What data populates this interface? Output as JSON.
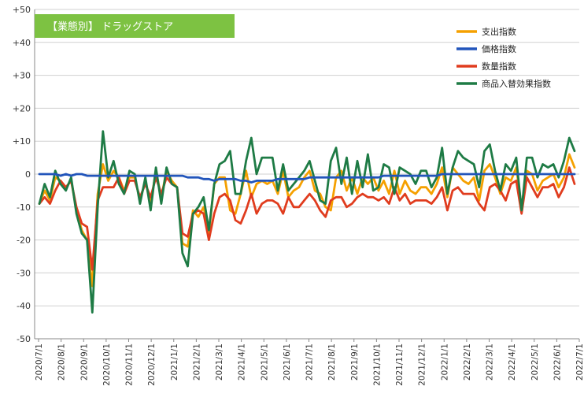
{
  "chart_data": {
    "type": "line",
    "title": "【業態別】 ドラッグストア",
    "xlabel": "",
    "ylabel": "",
    "ylim": [
      -50,
      50
    ],
    "y_ticks": [
      "+50",
      "+40",
      "+30",
      "+20",
      "+10",
      "0",
      "-10",
      "-20",
      "-30",
      "-40",
      "-50"
    ],
    "y_tick_values": [
      50,
      40,
      30,
      20,
      10,
      0,
      -10,
      -20,
      -30,
      -40,
      -50
    ],
    "x_tick_labels": [
      "2020/7/1",
      "2020/8/1",
      "2020/9/1",
      "2020/10/1",
      "2020/11/1",
      "2020/12/1",
      "2021/1/1",
      "2021/2/1",
      "2021/3/1",
      "2021/4/1",
      "2021/5/1",
      "2021/6/1",
      "2021/7/1",
      "2021/8/1",
      "2021/9/1",
      "2021/10/1",
      "2021/11/1",
      "2021/12/1",
      "2022/1/1",
      "2022/2/1",
      "2022/3/1",
      "2022/4/1",
      "2022/5/1",
      "2022/6/1",
      "2022/7/1"
    ],
    "x_start": "2020/7/1",
    "x_end": "2022/7/1",
    "grid": "horizontal",
    "legend_position": "top-right",
    "series": [
      {
        "name": "支出指数",
        "color": "#f5a000",
        "values": [
          -9,
          -5,
          -8,
          -1,
          -2,
          -4,
          -2,
          -11,
          -17,
          -20,
          -34,
          -6,
          3,
          -2,
          1,
          -1,
          -5,
          -1,
          -1,
          -8,
          -2,
          -9,
          1,
          -7,
          1,
          -2,
          -4,
          -21,
          -22,
          -11,
          -13,
          -10,
          -18,
          -3,
          -1,
          -1,
          -11,
          -12,
          -6,
          1,
          -7,
          -3,
          -2,
          -3,
          -2,
          -6,
          1,
          -7,
          -5,
          -4,
          -1,
          1,
          -5,
          -6,
          -10,
          -11,
          -1,
          1,
          -5,
          -1,
          -6,
          -1,
          -3,
          -1,
          -5,
          -2,
          -6,
          1,
          -6,
          -2,
          -5,
          -6,
          -4,
          -4,
          -6,
          -3,
          2,
          -7,
          2,
          0,
          -2,
          -3,
          -1,
          -8,
          1,
          3,
          -1,
          -6,
          -1,
          -2,
          2,
          -10,
          1,
          0,
          -5,
          -2,
          -1,
          0,
          -4,
          -1,
          6,
          2
        ]
      },
      {
        "name": "価格指数",
        "color": "#2255bb",
        "values": [
          0,
          0,
          0,
          0,
          -0.5,
          0,
          -0.5,
          0,
          0,
          -0.5,
          -0.5,
          -0.5,
          -0.5,
          -0.5,
          -0.5,
          -0.5,
          -0.5,
          -0.5,
          -0.5,
          -0.5,
          -0.5,
          -0.5,
          -0.5,
          -0.5,
          -0.5,
          -0.5,
          -0.5,
          -0.5,
          -1,
          -1,
          -1,
          -1.5,
          -1.5,
          -2,
          -1.5,
          -1.5,
          -1.5,
          -1.5,
          -2,
          -2,
          -2.5,
          -2,
          -2,
          -2,
          -2,
          -1.5,
          -1.5,
          -1.5,
          -1.5,
          -1.5,
          -1.5,
          -1,
          -1,
          -1,
          -1,
          -1,
          -1,
          -1,
          -1,
          -1,
          -1,
          -1,
          -1,
          -1,
          -1,
          -0.5,
          -0.5,
          -0.5,
          -0.5,
          -0.5,
          -0.5,
          -0.5,
          -0.5,
          -0.5,
          -0.5,
          -0.5,
          0,
          0,
          0,
          0,
          0,
          0,
          0,
          0,
          0,
          0,
          0,
          0,
          0,
          0,
          0,
          0,
          0,
          0,
          0,
          0,
          0,
          0,
          0,
          0,
          0,
          0
        ]
      },
      {
        "name": "数量指数",
        "color": "#e03c1e",
        "values": [
          -9,
          -7,
          -9,
          -5,
          -2,
          -4,
          -2,
          -10,
          -15,
          -16,
          -29,
          -8,
          -4,
          -4,
          -4,
          -1,
          -6,
          -2,
          -2,
          -7,
          -3,
          -7,
          -1,
          -6,
          -1,
          -3,
          -4,
          -18,
          -19,
          -12,
          -11,
          -12,
          -20,
          -12,
          -7,
          -6,
          -8,
          -14,
          -15,
          -11,
          -6,
          -12,
          -9,
          -8,
          -8,
          -9,
          -12,
          -7,
          -10,
          -10,
          -8,
          -6,
          -8,
          -11,
          -13,
          -8,
          -7,
          -7,
          -10,
          -9,
          -7,
          -6,
          -7,
          -7,
          -8,
          -7,
          -9,
          -4,
          -8,
          -6,
          -9,
          -8,
          -8,
          -8,
          -9,
          -7,
          -4,
          -11,
          -5,
          -4,
          -6,
          -6,
          -6,
          -9,
          -11,
          -4,
          -3,
          -5,
          -8,
          -3,
          -2,
          -12,
          -1,
          -4,
          -7,
          -4,
          -4,
          -3,
          -7,
          -4,
          2,
          -3
        ]
      },
      {
        "name": "商品入替効果指数",
        "color": "#1e7b45",
        "values": [
          -9,
          -3,
          -7,
          1,
          -3,
          -5,
          -1,
          -12,
          -18,
          -20,
          -42,
          -10,
          13,
          -1,
          4,
          -3,
          -6,
          1,
          0,
          -9,
          -1,
          -11,
          2,
          -9,
          2,
          -3,
          -4,
          -24,
          -28,
          -12,
          -10,
          -7,
          -17,
          -3,
          3,
          4,
          7,
          -6,
          -6,
          4,
          11,
          0,
          5,
          5,
          5,
          -5,
          3,
          -5,
          -3,
          -1,
          1,
          4,
          -2,
          -8,
          -9,
          4,
          8,
          -3,
          5,
          -6,
          4,
          -4,
          6,
          -5,
          -4,
          3,
          2,
          -6,
          2,
          1,
          0,
          -3,
          1,
          1,
          -4,
          -1,
          8,
          -6,
          2,
          7,
          5,
          4,
          3,
          -4,
          7,
          9,
          1,
          -5,
          3,
          1,
          5,
          -11,
          5,
          5,
          -1,
          3,
          2,
          3,
          -1,
          4,
          11,
          7
        ]
      }
    ]
  }
}
